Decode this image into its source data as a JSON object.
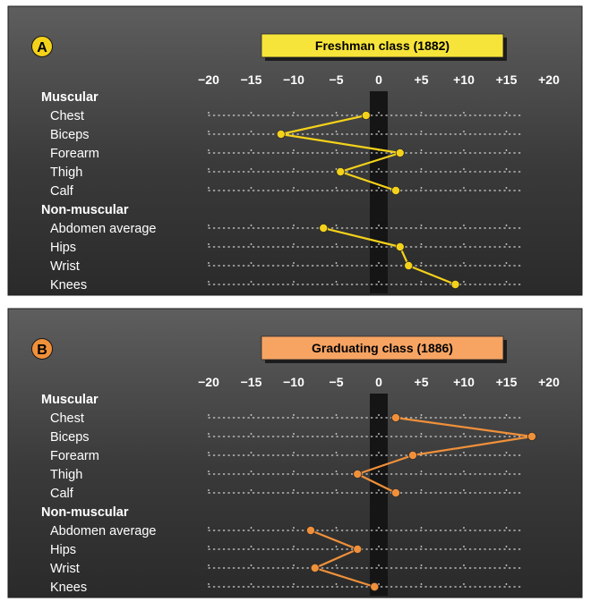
{
  "chart_data": [
    {
      "type": "line",
      "panel_label": "A",
      "title": "Freshman class (1882)",
      "color": "#f5d21a",
      "title_bg": "#f7e43a",
      "x_ticks": [
        "−20",
        "−15",
        "−10",
        "−5",
        "0",
        "+5",
        "+10",
        "+15",
        "+20"
      ],
      "xlim": [
        -20,
        20
      ],
      "groups": [
        {
          "name": "Muscular",
          "items": [
            {
              "label": "Chest",
              "value": -1.5
            },
            {
              "label": "Biceps",
              "value": -11.5
            },
            {
              "label": "Forearm",
              "value": 2.5
            },
            {
              "label": "Thigh",
              "value": -4.5
            },
            {
              "label": "Calf",
              "value": 2.0
            }
          ]
        },
        {
          "name": "Non-muscular",
          "items": [
            {
              "label": "Abdomen average",
              "value": -6.5
            },
            {
              "label": "Hips",
              "value": 2.5
            },
            {
              "label": "Wrist",
              "value": 3.5
            },
            {
              "label": "Knees",
              "value": 9.0
            }
          ]
        }
      ]
    },
    {
      "type": "line",
      "panel_label": "B",
      "title": "Graduating class (1886)",
      "color": "#f0903a",
      "title_bg": "#f7a463",
      "x_ticks": [
        "−20",
        "−15",
        "−10",
        "−5",
        "0",
        "+5",
        "+10",
        "+15",
        "+20"
      ],
      "xlim": [
        -20,
        20
      ],
      "groups": [
        {
          "name": "Muscular",
          "items": [
            {
              "label": "Chest",
              "value": 2.0
            },
            {
              "label": "Biceps",
              "value": 18.0
            },
            {
              "label": "Forearm",
              "value": 4.0
            },
            {
              "label": "Thigh",
              "value": -2.5
            },
            {
              "label": "Calf",
              "value": 2.0
            }
          ]
        },
        {
          "name": "Non-muscular",
          "items": [
            {
              "label": "Abdomen average",
              "value": -8.0
            },
            {
              "label": "Hips",
              "value": -2.5
            },
            {
              "label": "Wrist",
              "value": -7.5
            },
            {
              "label": "Knees",
              "value": -0.5
            }
          ]
        }
      ]
    }
  ]
}
